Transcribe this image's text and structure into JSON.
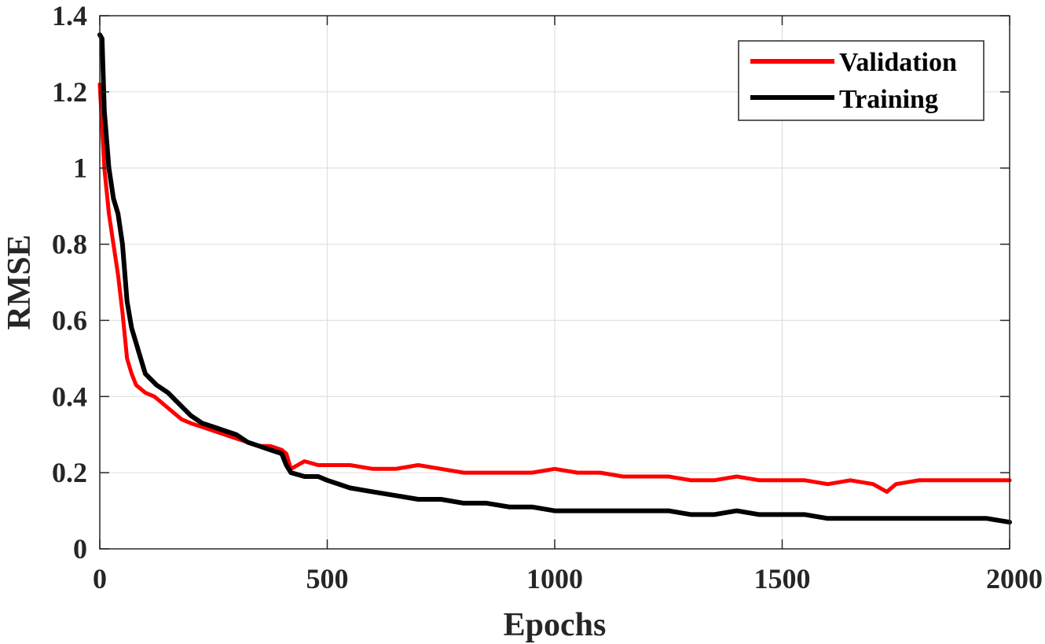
{
  "chart_data": {
    "type": "line",
    "title": "",
    "xlabel": "Epochs",
    "ylabel": "RMSE",
    "xlim": [
      0,
      2000
    ],
    "ylim": [
      0,
      1.4
    ],
    "xticks": [
      0,
      500,
      1000,
      1500,
      2000
    ],
    "yticks": [
      0,
      0.2,
      0.4,
      0.6,
      0.8,
      1,
      1.2,
      1.4
    ],
    "xtick_labels": [
      "0",
      "500",
      "1000",
      "1500",
      "2000"
    ],
    "ytick_labels": [
      "0",
      "0.2",
      "0.4",
      "0.6",
      "0.8",
      "1",
      "1.2",
      "1.4"
    ],
    "grid": true,
    "legend_position": "top-right",
    "series": [
      {
        "name": "Validation",
        "color": "#ff0000",
        "x": [
          0,
          10,
          20,
          30,
          40,
          50,
          60,
          70,
          80,
          90,
          100,
          120,
          140,
          160,
          180,
          200,
          225,
          250,
          275,
          300,
          325,
          350,
          375,
          400,
          410,
          420,
          450,
          480,
          500,
          550,
          600,
          650,
          700,
          750,
          800,
          850,
          900,
          950,
          1000,
          1050,
          1100,
          1150,
          1200,
          1250,
          1300,
          1350,
          1400,
          1450,
          1500,
          1550,
          1600,
          1650,
          1700,
          1730,
          1750,
          1800,
          1850,
          1900,
          1950,
          2000
        ],
        "y": [
          1.22,
          1.0,
          0.88,
          0.8,
          0.72,
          0.62,
          0.5,
          0.46,
          0.43,
          0.42,
          0.41,
          0.4,
          0.38,
          0.36,
          0.34,
          0.33,
          0.32,
          0.31,
          0.3,
          0.29,
          0.28,
          0.27,
          0.27,
          0.26,
          0.25,
          0.21,
          0.23,
          0.22,
          0.22,
          0.22,
          0.21,
          0.21,
          0.22,
          0.21,
          0.2,
          0.2,
          0.2,
          0.2,
          0.21,
          0.2,
          0.2,
          0.19,
          0.19,
          0.19,
          0.18,
          0.18,
          0.19,
          0.18,
          0.18,
          0.18,
          0.17,
          0.18,
          0.17,
          0.15,
          0.17,
          0.18,
          0.18,
          0.18,
          0.18,
          0.18
        ]
      },
      {
        "name": "Training",
        "color": "#000000",
        "x": [
          0,
          5,
          10,
          20,
          30,
          40,
          50,
          60,
          70,
          80,
          90,
          100,
          125,
          150,
          175,
          200,
          225,
          250,
          275,
          300,
          325,
          350,
          375,
          400,
          410,
          420,
          450,
          480,
          500,
          550,
          600,
          650,
          700,
          750,
          800,
          850,
          900,
          950,
          1000,
          1050,
          1100,
          1150,
          1200,
          1250,
          1300,
          1350,
          1400,
          1450,
          1500,
          1550,
          1600,
          1650,
          1700,
          1750,
          1800,
          1850,
          1900,
          1950,
          2000
        ],
        "y": [
          1.35,
          1.34,
          1.15,
          1.0,
          0.92,
          0.88,
          0.8,
          0.65,
          0.58,
          0.54,
          0.5,
          0.46,
          0.43,
          0.41,
          0.38,
          0.35,
          0.33,
          0.32,
          0.31,
          0.3,
          0.28,
          0.27,
          0.26,
          0.25,
          0.22,
          0.2,
          0.19,
          0.19,
          0.18,
          0.16,
          0.15,
          0.14,
          0.13,
          0.13,
          0.12,
          0.12,
          0.11,
          0.11,
          0.1,
          0.1,
          0.1,
          0.1,
          0.1,
          0.1,
          0.09,
          0.09,
          0.1,
          0.09,
          0.09,
          0.09,
          0.08,
          0.08,
          0.08,
          0.08,
          0.08,
          0.08,
          0.08,
          0.08,
          0.07
        ]
      }
    ]
  }
}
